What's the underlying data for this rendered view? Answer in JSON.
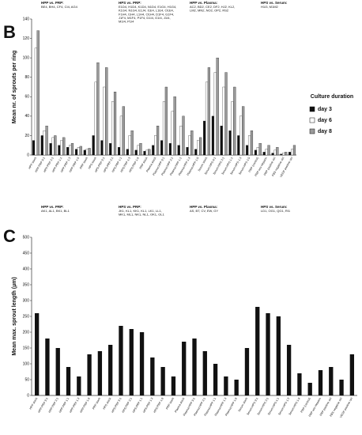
{
  "panel_labels": [
    "B",
    "C"
  ],
  "chart_data": [
    {
      "type": "bar",
      "y_label": "Mean nr. of sprouts per ring",
      "legend_title": "Culture duration",
      "legend": "right",
      "headers": [
        {
          "title": "HPP vs. PRP:",
          "lines": [
            "BE4, BH4, CF4, CI4, AG4"
          ]
        },
        {
          "title": "HPS vs. PRP:",
          "lines": [
            "E1D4, H1D4, K1D4, N1D4, E1G4, H1G4,",
            "K1G4, N1G4, E1J4, I1E4, L1E4, O1E4,",
            "F1H4, I1H4, L1H4, O1H4, D1F4, G1F4,",
            "J1F4, M1F4, P1F4, D1I4, G1I4, J1I4,",
            "M1I4, P1I4"
          ]
        },
        {
          "title": "HPP vs. Plasma:",
          "lines": [
            "AC2, BD2, CE2, DF2, HJ2, KL2,",
            "LM2, MN2, NO2, OP2, RS2"
          ]
        },
        {
          "title": "HPS vs. Serum:",
          "lines": [
            "H1I3, M1M2"
          ]
        }
      ],
      "categories": [
        "HPP stock",
        "HPP:PRP 9:1",
        "HPP:PRP 3:1",
        "HPP:PRP 1:1",
        "HPP:PRP 1:3",
        "HPP:PRP 1:9",
        "PRP stock",
        "HPS stock",
        "HPS:PRP 9:1",
        "HPS:PRP 3:1",
        "HPS:PRP 1:1",
        "HPS:PRP 1:3",
        "HPS:PRP 1:9",
        "PRP stock",
        "Plasma stock",
        "Plasma:HPP 9:1",
        "Plasma:HPP 3:1",
        "Plasma:HPP 1:1",
        "Plasma:HPP 1:3",
        "Plasma:HPP 1:9",
        "Serum stock",
        "Serum:HPS 9:1",
        "Serum:HPS 3:1",
        "Serum:HPS 1:1",
        "Serum:HPS 1:3",
        "Serum:HPS 1:9",
        "PRP (control)",
        "PRP w/o Heparin",
        "PRP positive ctrl",
        "FBS negative ctrl",
        "VEGF positive ctrl"
      ],
      "series": [
        {
          "name": "day 3",
          "color": "#111111",
          "values": [
            15,
            20,
            12,
            10,
            8,
            6,
            5,
            20,
            15,
            12,
            8,
            6,
            5,
            4,
            10,
            15,
            12,
            10,
            8,
            6,
            35,
            40,
            30,
            25,
            20,
            10,
            5,
            3,
            2,
            1,
            3
          ]
        },
        {
          "name": "day 6",
          "color": "#ffffff",
          "values": [
            110,
            25,
            18,
            15,
            10,
            8,
            6,
            75,
            70,
            55,
            40,
            20,
            10,
            5,
            20,
            55,
            45,
            30,
            20,
            15,
            75,
            85,
            70,
            55,
            40,
            20,
            8,
            6,
            5,
            2,
            6
          ]
        },
        {
          "name": "day 8",
          "color": "#9a9a9a",
          "values": [
            128,
            30,
            20,
            18,
            12,
            9,
            7,
            95,
            90,
            65,
            50,
            25,
            12,
            6,
            30,
            70,
            60,
            40,
            25,
            18,
            90,
            100,
            85,
            70,
            50,
            25,
            12,
            10,
            8,
            3,
            10
          ]
        }
      ],
      "ylim": [
        0,
        140
      ],
      "yticks": [
        0,
        20,
        40,
        60,
        80,
        100,
        120,
        140
      ]
    },
    {
      "type": "bar",
      "y_label": "Mean max. sprout length (µm)",
      "headers": [
        {
          "title": "HPP vs. PRP:",
          "lines": [
            "AK1, AL1, BK1, BL1"
          ]
        },
        {
          "title": "HPS vs. PRP:",
          "lines": [
            "JK1, KL1, KK1, KL1, LK1, LL1,",
            "MK1, ML1, NK1, NL1, OK1, OL1"
          ]
        },
        {
          "title": "HPP vs. Plasma:",
          "lines": [
            "AS, BT, CV, EW, GY"
          ]
        },
        {
          "title": "HPS vs. Serum:",
          "lines": [
            "LD1, OG1, QG1, RI1"
          ]
        }
      ],
      "categories": [
        "HPP stock",
        "HPP:PRP 9:1",
        "HPP:PRP 3:1",
        "HPP:PRP 1:1",
        "HPP:PRP 1:3",
        "HPP:PRP 1:9",
        "PRP stock",
        "HPS stock",
        "HPS:PRP 9:1",
        "HPS:PRP 3:1",
        "HPS:PRP 1:1",
        "HPS:PRP 1:3",
        "HPS:PRP 1:9",
        "PRP stock",
        "Plasma stock",
        "Plasma:HPP 9:1",
        "Plasma:HPP 3:1",
        "Plasma:HPP 1:1",
        "Plasma:HPP 1:3",
        "Plasma:HPP 1:9",
        "Serum stock",
        "Serum:HPS 9:1",
        "Serum:HPS 3:1",
        "Serum:HPS 1:1",
        "Serum:HPS 1:3",
        "Serum:HPS 1:9",
        "PRP (control)",
        "PRP w/o Heparin",
        "PRP positive ctrl",
        "FBS negative ctrl",
        "VEGF positive ctrl"
      ],
      "values": [
        260,
        180,
        150,
        90,
        60,
        130,
        140,
        160,
        220,
        210,
        200,
        120,
        90,
        60,
        170,
        180,
        140,
        100,
        60,
        50,
        150,
        280,
        260,
        250,
        160,
        70,
        40,
        80,
        90,
        50,
        130
      ],
      "color": "#111111",
      "ylim": [
        0,
        500
      ],
      "yticks": [
        0,
        50,
        100,
        150,
        200,
        250,
        300,
        350,
        400,
        450,
        500
      ]
    }
  ]
}
